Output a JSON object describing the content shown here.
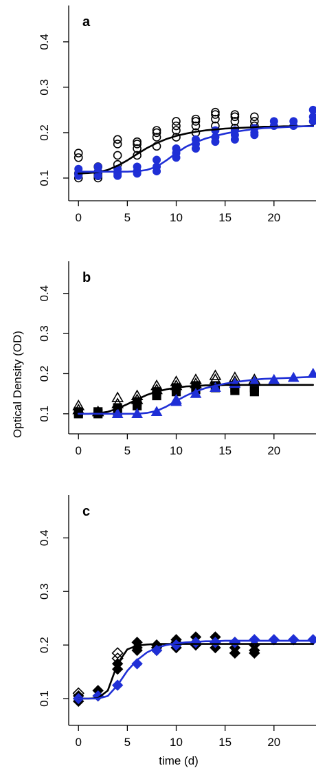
{
  "figure": {
    "ylabel": "Optical Density (OD)",
    "xlabel": "time (d)"
  },
  "chart_data": [
    {
      "type": "scatter",
      "panel_label": "a",
      "xlim": [
        -1,
        24.3
      ],
      "ylim": [
        0.05,
        0.48
      ],
      "x_ticks": [
        0,
        5,
        10,
        15,
        20
      ],
      "y_ticks": [
        0.1,
        0.2,
        0.3,
        0.4
      ],
      "series": [
        {
          "color": "#000000",
          "marker": "circle-open",
          "x": [
            0,
            0,
            0,
            0,
            2,
            2,
            2,
            2,
            4,
            4,
            4,
            4,
            6,
            6,
            6,
            6,
            8,
            8,
            8,
            8,
            10,
            10,
            10,
            10,
            12,
            12,
            12,
            12,
            14,
            14,
            14,
            14,
            16,
            16,
            16,
            16,
            18,
            18,
            18
          ],
          "y": [
            0.155,
            0.145,
            0.11,
            0.1,
            0.125,
            0.11,
            0.105,
            0.1,
            0.185,
            0.175,
            0.15,
            0.13,
            0.18,
            0.175,
            0.165,
            0.15,
            0.205,
            0.2,
            0.19,
            0.17,
            0.225,
            0.215,
            0.205,
            0.19,
            0.23,
            0.225,
            0.215,
            0.2,
            0.245,
            0.24,
            0.23,
            0.215,
            0.24,
            0.235,
            0.225,
            0.21,
            0.235,
            0.225,
            0.215
          ]
        },
        {
          "color": "#1f2fd6",
          "marker": "circle-filled",
          "x": [
            0,
            0,
            0,
            2,
            2,
            2,
            4,
            4,
            4,
            6,
            6,
            6,
            8,
            8,
            8,
            10,
            10,
            10,
            12,
            12,
            12,
            14,
            14,
            14,
            16,
            16,
            16,
            18,
            18,
            18,
            20,
            20,
            22,
            22,
            24,
            24,
            24
          ],
          "y": [
            0.12,
            0.11,
            0.105,
            0.125,
            0.115,
            0.105,
            0.12,
            0.11,
            0.105,
            0.125,
            0.115,
            0.11,
            0.14,
            0.125,
            0.115,
            0.165,
            0.155,
            0.145,
            0.185,
            0.175,
            0.165,
            0.205,
            0.19,
            0.18,
            0.205,
            0.195,
            0.185,
            0.21,
            0.2,
            0.195,
            0.225,
            0.215,
            0.225,
            0.215,
            0.25,
            0.235,
            0.225
          ]
        }
      ],
      "fits": [
        {
          "color": "#000000",
          "x": [
            0,
            1,
            2,
            3,
            4,
            5,
            6,
            7,
            8,
            9,
            10,
            11,
            12,
            13,
            14,
            15,
            16,
            17,
            18,
            19,
            20,
            21,
            22,
            23,
            24
          ],
          "y": [
            0.11,
            0.111,
            0.113,
            0.118,
            0.127,
            0.139,
            0.153,
            0.166,
            0.177,
            0.186,
            0.193,
            0.198,
            0.202,
            0.205,
            0.207,
            0.209,
            0.21,
            0.211,
            0.212,
            0.213,
            0.213,
            0.214,
            0.214,
            0.214,
            0.215
          ]
        },
        {
          "color": "#1f2fd6",
          "x": [
            0,
            1,
            2,
            3,
            4,
            5,
            6,
            7,
            8,
            9,
            10,
            11,
            12,
            13,
            14,
            15,
            16,
            17,
            18,
            19,
            20,
            21,
            22,
            23,
            24
          ],
          "y": [
            0.114,
            0.114,
            0.114,
            0.114,
            0.114,
            0.114,
            0.115,
            0.118,
            0.125,
            0.139,
            0.155,
            0.169,
            0.179,
            0.187,
            0.193,
            0.198,
            0.202,
            0.205,
            0.208,
            0.21,
            0.211,
            0.212,
            0.213,
            0.214,
            0.214
          ]
        }
      ]
    },
    {
      "type": "scatter",
      "panel_label": "b",
      "xlim": [
        -1,
        24.3
      ],
      "ylim": [
        0.05,
        0.48
      ],
      "x_ticks": [
        0,
        5,
        10,
        15,
        20
      ],
      "y_ticks": [
        0.1,
        0.2,
        0.3,
        0.4
      ],
      "series": [
        {
          "color": "#000000",
          "marker": "triangle-open",
          "x": [
            0,
            0,
            2,
            4,
            4,
            6,
            6,
            8,
            8,
            10,
            10,
            12,
            12,
            14,
            14,
            16,
            16,
            18
          ],
          "y": [
            0.12,
            0.11,
            0.105,
            0.14,
            0.125,
            0.145,
            0.135,
            0.17,
            0.16,
            0.18,
            0.17,
            0.185,
            0.175,
            0.195,
            0.185,
            0.19,
            0.18,
            0.185
          ]
        },
        {
          "color": "#000000",
          "marker": "square-filled",
          "x": [
            0,
            0,
            2,
            2,
            4,
            4,
            6,
            6,
            8,
            8,
            10,
            10,
            12,
            12,
            14,
            14,
            16,
            16,
            18,
            18
          ],
          "y": [
            0.105,
            0.1,
            0.105,
            0.1,
            0.115,
            0.105,
            0.13,
            0.12,
            0.155,
            0.145,
            0.165,
            0.155,
            0.17,
            0.16,
            0.17,
            0.165,
            0.165,
            0.158,
            0.165,
            0.155
          ]
        },
        {
          "color": "#1f2fd6",
          "marker": "triangle-filled",
          "x": [
            4,
            6,
            8,
            10,
            10,
            12,
            14,
            16,
            18,
            20,
            22,
            24
          ],
          "y": [
            0.1,
            0.1,
            0.105,
            0.13,
            0.135,
            0.15,
            0.165,
            0.175,
            0.18,
            0.185,
            0.19,
            0.2
          ]
        }
      ],
      "fits": [
        {
          "color": "#000000",
          "x": [
            0,
            1,
            2,
            3,
            4,
            5,
            6,
            7,
            8,
            9,
            10,
            11,
            12,
            13,
            14,
            15,
            16,
            17,
            18,
            19,
            20,
            21,
            22,
            23,
            24
          ],
          "y": [
            0.1,
            0.1,
            0.101,
            0.105,
            0.113,
            0.124,
            0.136,
            0.147,
            0.155,
            0.161,
            0.165,
            0.168,
            0.169,
            0.171,
            0.171,
            0.172,
            0.172,
            0.172,
            0.172,
            0.172,
            0.172,
            0.172,
            0.172,
            0.172,
            0.172
          ]
        },
        {
          "color": "#1f2fd6",
          "x": [
            0,
            1,
            2,
            3,
            4,
            5,
            6,
            7,
            8,
            9,
            10,
            11,
            12,
            13,
            14,
            15,
            16,
            17,
            18,
            19,
            20,
            21,
            22,
            23,
            24
          ],
          "y": [
            0.1,
            0.1,
            0.1,
            0.1,
            0.1,
            0.1,
            0.1,
            0.102,
            0.107,
            0.118,
            0.132,
            0.145,
            0.156,
            0.164,
            0.17,
            0.175,
            0.179,
            0.182,
            0.185,
            0.187,
            0.188,
            0.189,
            0.19,
            0.191,
            0.192
          ]
        }
      ]
    },
    {
      "type": "scatter",
      "panel_label": "c",
      "xlim": [
        -1,
        24.3
      ],
      "ylim": [
        0.05,
        0.48
      ],
      "x_ticks": [
        0,
        5,
        10,
        15,
        20
      ],
      "y_ticks": [
        0.1,
        0.2,
        0.3,
        0.4
      ],
      "series": [
        {
          "color": "#000000",
          "marker": "diamond-open",
          "x": [
            0,
            4,
            4
          ],
          "y": [
            0.11,
            0.185,
            0.175
          ]
        },
        {
          "color": "#000000",
          "marker": "diamond-filled",
          "x": [
            0,
            0,
            0,
            2,
            2,
            4,
            4,
            6,
            6,
            6,
            8,
            8,
            8,
            10,
            10,
            10,
            12,
            12,
            12,
            14,
            14,
            14,
            16,
            16,
            16,
            18,
            18,
            18
          ],
          "y": [
            0.105,
            0.1,
            0.095,
            0.115,
            0.105,
            0.165,
            0.155,
            0.205,
            0.195,
            0.19,
            0.2,
            0.195,
            0.19,
            0.21,
            0.205,
            0.195,
            0.215,
            0.205,
            0.2,
            0.215,
            0.205,
            0.195,
            0.205,
            0.195,
            0.185,
            0.2,
            0.19,
            0.185
          ]
        },
        {
          "color": "#1f2fd6",
          "marker": "diamond-filled",
          "x": [
            0,
            2,
            4,
            6,
            8,
            10,
            12,
            14,
            16,
            18,
            20,
            22,
            24
          ],
          "y": [
            0.1,
            0.105,
            0.125,
            0.165,
            0.19,
            0.2,
            0.205,
            0.205,
            0.205,
            0.21,
            0.21,
            0.21,
            0.21
          ]
        }
      ],
      "fits": [
        {
          "color": "#000000",
          "x": [
            0,
            1,
            2,
            3,
            4,
            5,
            6,
            7,
            8,
            9,
            10,
            11,
            12,
            13,
            14,
            15,
            16,
            17,
            18,
            19,
            20,
            21,
            22,
            23,
            24
          ],
          "y": [
            0.1,
            0.1,
            0.101,
            0.115,
            0.165,
            0.192,
            0.199,
            0.201,
            0.202,
            0.202,
            0.202,
            0.202,
            0.202,
            0.202,
            0.202,
            0.202,
            0.202,
            0.202,
            0.202,
            0.202,
            0.202,
            0.202,
            0.202,
            0.202,
            0.202
          ]
        },
        {
          "color": "#1f2fd6",
          "x": [
            0,
            1,
            2,
            3,
            4,
            5,
            6,
            7,
            8,
            9,
            10,
            11,
            12,
            13,
            14,
            15,
            16,
            17,
            18,
            19,
            20,
            21,
            22,
            23,
            24
          ],
          "y": [
            0.1,
            0.1,
            0.1,
            0.105,
            0.125,
            0.152,
            0.172,
            0.186,
            0.195,
            0.2,
            0.203,
            0.205,
            0.206,
            0.207,
            0.207,
            0.208,
            0.208,
            0.208,
            0.208,
            0.208,
            0.208,
            0.208,
            0.208,
            0.208,
            0.208
          ]
        }
      ]
    }
  ]
}
